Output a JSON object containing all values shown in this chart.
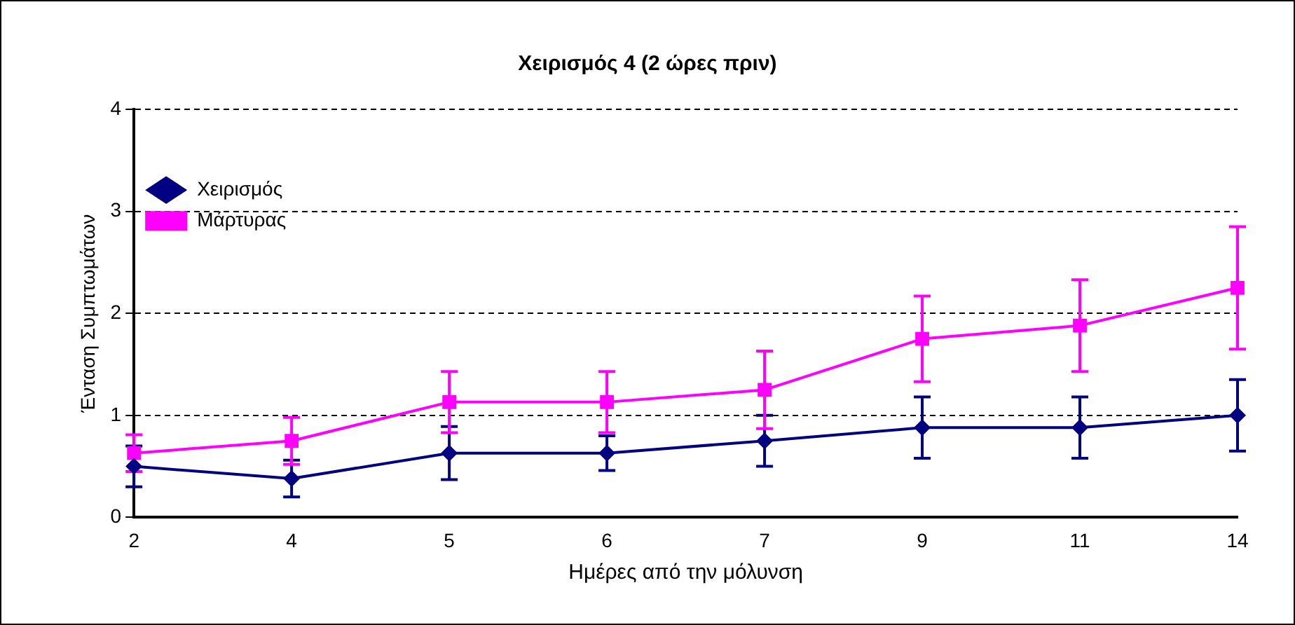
{
  "chart_data": {
    "type": "line",
    "title": "Χειρισμός 4 (2 ώρες πριν)",
    "xlabel": "Ημέρες από την μόλυνση",
    "ylabel": "Ένταση Συμπτωμάτων",
    "categories": [
      "2",
      "4",
      "5",
      "6",
      "7",
      "9",
      "11",
      "14"
    ],
    "series": [
      {
        "name": "Χειρισμός",
        "color": "#000080",
        "marker": "diamond",
        "values": [
          0.5,
          0.38,
          0.63,
          0.63,
          0.75,
          0.88,
          0.88,
          1.0
        ],
        "errors": [
          0.2,
          0.18,
          0.26,
          0.17,
          0.25,
          0.3,
          0.3,
          0.35
        ]
      },
      {
        "name": "Μάρτυρας",
        "color": "#ff00ff",
        "marker": "square",
        "values": [
          0.63,
          0.75,
          1.13,
          1.13,
          1.25,
          1.75,
          1.88,
          2.25
        ],
        "errors": [
          0.18,
          0.23,
          0.3,
          0.3,
          0.38,
          0.42,
          0.45,
          0.6
        ]
      }
    ],
    "ylim": [
      0,
      4
    ],
    "yticks": [
      0,
      1,
      2,
      3,
      4
    ],
    "grid": "y",
    "legend": "top"
  }
}
